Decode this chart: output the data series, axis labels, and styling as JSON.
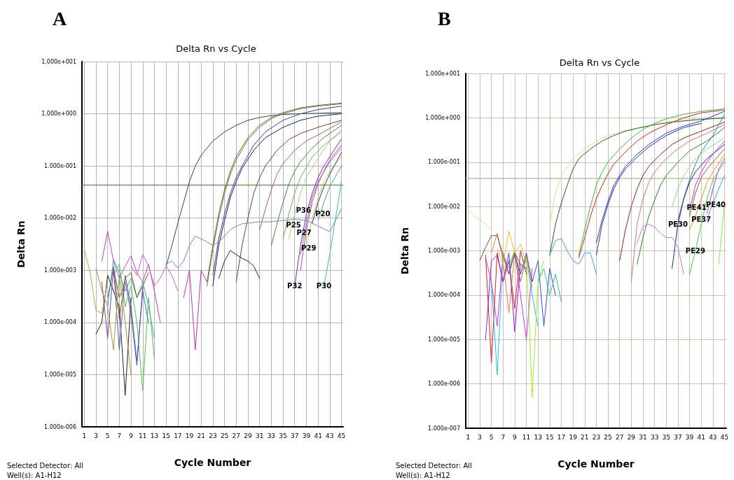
{
  "chart_data": [
    {
      "type": "line",
      "title": "Delta Rn vs Cycle",
      "xlabel": "Cycle Number",
      "ylabel": "Delta Rn",
      "log": "y",
      "grid": true,
      "marker": "none",
      "line_style": "solid",
      "xlim": [
        0.6,
        45.3
      ],
      "xticks": [
        1,
        3,
        5,
        7,
        9,
        11,
        13,
        15,
        17,
        19,
        21,
        23,
        25,
        27,
        29,
        31,
        33,
        35,
        37,
        39,
        41,
        43,
        45
      ],
      "ylim": [
        1e-06,
        10
      ],
      "yticks": [
        {
          "value": 1e-06,
          "label": "1.000e-006"
        },
        {
          "value": 1e-05,
          "label": "1.000e-005"
        },
        {
          "value": 0.0001,
          "label": "1.000e-004"
        },
        {
          "value": 0.001,
          "label": "1.000e-003"
        },
        {
          "value": 0.01,
          "label": "1.000e-002"
        },
        {
          "value": 0.1,
          "label": "1.000e-001"
        },
        {
          "value": 1,
          "label": "1.000e+000"
        },
        {
          "value": 10,
          "label": "1.000e+001"
        }
      ],
      "ref_lines": [
        {
          "axis": "y",
          "value": 0.043,
          "color": "#6f9a5f"
        }
      ],
      "annotations": [
        "A",
        "Selected Detector: All",
        "Well(s): A1-H12",
        {
          "text": "P36",
          "x": 38.5,
          "y": 0.014
        },
        {
          "text": "P20",
          "x": 41.8,
          "y": 0.012
        },
        {
          "text": "P25",
          "x": 36.8,
          "y": 0.0075
        },
        {
          "text": "P27",
          "x": 38.6,
          "y": 0.0052
        },
        {
          "text": "P29",
          "x": 39.4,
          "y": 0.0027
        },
        {
          "text": "P32",
          "x": 37,
          "y": 0.0005
        },
        {
          "text": "P30",
          "x": 42,
          "y": 0.0005
        }
      ],
      "series": [
        {
          "color": "#2f4a35",
          "x": [
            15,
            16,
            17,
            18,
            19,
            20,
            21,
            23,
            25,
            27,
            29,
            31,
            33,
            35,
            38,
            41,
            45
          ],
          "values": [
            0.0012,
            0.003,
            0.008,
            0.02,
            0.05,
            0.1,
            0.16,
            0.3,
            0.45,
            0.6,
            0.75,
            0.85,
            0.92,
            0.97,
            1,
            1.02,
            1.05
          ]
        },
        {
          "color": "#b04040",
          "x": [
            22,
            23,
            24,
            25,
            26,
            27,
            29,
            31,
            33,
            35,
            38,
            41,
            45
          ],
          "values": [
            0.0006,
            0.003,
            0.012,
            0.035,
            0.08,
            0.15,
            0.35,
            0.6,
            0.85,
            1.05,
            1.3,
            1.45,
            1.6
          ]
        },
        {
          "color": "#3a9a3a",
          "x": [
            22,
            23,
            24,
            25,
            26,
            27,
            29,
            31,
            33,
            35,
            38,
            41,
            45
          ],
          "values": [
            0.0005,
            0.0025,
            0.01,
            0.03,
            0.07,
            0.13,
            0.32,
            0.55,
            0.8,
            1,
            1.25,
            1.4,
            1.55
          ]
        },
        {
          "color": "#3a3aa0",
          "x": [
            23,
            24,
            25,
            26,
            27,
            28,
            30,
            32,
            35,
            38,
            41,
            45
          ],
          "values": [
            0.0008,
            0.004,
            0.012,
            0.03,
            0.06,
            0.1,
            0.25,
            0.45,
            0.75,
            1,
            1.2,
            1.4
          ]
        },
        {
          "color": "#202050",
          "x": [
            23,
            24,
            25,
            26,
            27,
            28,
            30,
            32,
            35,
            38,
            41,
            45
          ],
          "values": [
            0.0005,
            0.003,
            0.009,
            0.025,
            0.05,
            0.09,
            0.2,
            0.35,
            0.55,
            0.75,
            0.9,
            1
          ]
        },
        {
          "color": "#7a3a2a",
          "x": [
            27,
            28,
            29,
            30,
            31,
            32,
            34,
            36,
            38,
            41,
            45
          ],
          "values": [
            0.0006,
            0.003,
            0.01,
            0.03,
            0.06,
            0.1,
            0.2,
            0.32,
            0.42,
            0.55,
            0.75
          ]
        },
        {
          "color": "#a06070",
          "x": [
            31,
            32,
            33,
            34,
            35,
            37,
            39,
            42,
            45
          ],
          "values": [
            0.006,
            0.015,
            0.035,
            0.07,
            0.11,
            0.2,
            0.3,
            0.45,
            0.7
          ]
        },
        {
          "color": "#3a8a4a",
          "x": [
            33,
            34,
            35,
            36,
            37,
            38,
            40,
            42,
            45
          ],
          "values": [
            0.003,
            0.008,
            0.02,
            0.045,
            0.08,
            0.12,
            0.22,
            0.35,
            0.6
          ]
        },
        {
          "color": "#60b060",
          "x": [
            35,
            36,
            37,
            38,
            40,
            42,
            45
          ],
          "values": [
            0.004,
            0.012,
            0.03,
            0.06,
            0.15,
            0.25,
            0.45
          ]
        },
        {
          "color": "#c0c080",
          "x": [
            36,
            37,
            38,
            39,
            41,
            43,
            45
          ],
          "values": [
            0.004,
            0.012,
            0.03,
            0.06,
            0.14,
            0.3,
            0.5
          ]
        },
        {
          "color": "#7a2a9a",
          "x": [
            37,
            38,
            39,
            40,
            41,
            42,
            43,
            45
          ],
          "values": [
            0.0005,
            0.003,
            0.012,
            0.03,
            0.06,
            0.1,
            0.15,
            0.33
          ]
        },
        {
          "color": "#c040c0",
          "x": [
            38,
            39,
            40,
            41,
            42,
            43,
            45
          ],
          "values": [
            0.001,
            0.006,
            0.02,
            0.045,
            0.08,
            0.13,
            0.25
          ]
        },
        {
          "color": "#9a60c0",
          "x": [
            38,
            39,
            40,
            41,
            43,
            45
          ],
          "values": [
            0.002,
            0.008,
            0.025,
            0.05,
            0.12,
            0.22
          ]
        },
        {
          "color": "#d8d040",
          "x": [
            39,
            40,
            41,
            42,
            43,
            45
          ],
          "values": [
            0.003,
            0.01,
            0.025,
            0.05,
            0.08,
            0.15
          ]
        },
        {
          "color": "#303070",
          "x": [
            40,
            41,
            42,
            43,
            45
          ],
          "values": [
            0.008,
            0.02,
            0.04,
            0.07,
            0.18
          ]
        },
        {
          "color": "#50a080",
          "x": [
            41,
            42,
            43,
            45
          ],
          "values": [
            0.009,
            0.02,
            0.04,
            0.1
          ]
        },
        {
          "color": "#30c0c0",
          "x": [
            42,
            43,
            44,
            45
          ],
          "values": [
            0.0005,
            0.002,
            0.01,
            0.05
          ]
        },
        {
          "color": "#6a8ab0",
          "x": [
            15,
            16,
            17,
            18,
            19,
            20,
            21,
            22,
            23,
            24,
            25,
            26,
            27,
            28,
            29,
            31,
            33,
            35,
            37,
            39,
            41,
            43,
            45
          ],
          "values": [
            0.0013,
            0.0015,
            0.0011,
            0.0015,
            0.003,
            0.0045,
            0.004,
            0.0035,
            0.003,
            0.0035,
            0.0045,
            0.006,
            0.007,
            0.0078,
            0.008,
            0.0085,
            0.0085,
            0.009,
            0.0095,
            0.009,
            0.007,
            0.0055,
            0.015
          ]
        },
        {
          "color": "#c040c0",
          "x": [
            4,
            5,
            6,
            7,
            8,
            9,
            10,
            11,
            12,
            13,
            14
          ],
          "values": [
            0.0015,
            0.0056,
            0.0015,
            0.0007,
            0.0012,
            0.0019,
            0.0009,
            0.0006,
            0.0013,
            0.0004,
            0.0001
          ]
        },
        {
          "color": "#30b0a0",
          "x": [
            5,
            6,
            7,
            8,
            9,
            10,
            11,
            12,
            13
          ],
          "values": [
            0.0002,
            0.0016,
            0.0009,
            0.0004,
            0.0007,
            0.0003,
            0.0006,
            0.0002,
            5e-05
          ]
        },
        {
          "color": "#202020",
          "x": [
            3,
            4,
            5,
            6,
            7,
            8,
            9
          ],
          "values": [
            6e-05,
            0.0001,
            0.0008,
            0.0004,
            0.0002,
            4e-06,
            0.0003
          ]
        },
        {
          "color": "#d0a030",
          "x": [
            1,
            2,
            3,
            4,
            5
          ],
          "values": [
            0.0025,
            0.0009,
            0.00017,
            0.00015,
            0.0006
          ]
        },
        {
          "color": "#8040a0",
          "x": [
            4,
            5,
            6,
            7,
            8,
            9,
            10,
            11
          ],
          "values": [
            0.0006,
            5e-05,
            0.0011,
            0.0003,
            0.0006,
            0.00015,
            1.5e-05,
            0.0005
          ]
        },
        {
          "color": "#50c050",
          "x": [
            6,
            7,
            8,
            9,
            10,
            11,
            12,
            13
          ],
          "values": [
            0.0008,
            0.0013,
            0.0002,
            0.0005,
            0.0001,
            5e-06,
            0.0003,
            2e-05
          ]
        },
        {
          "color": "#4060c0",
          "x": [
            5,
            6,
            7,
            8,
            9,
            10,
            11,
            12
          ],
          "values": [
            0.0003,
            0.0011,
            3e-05,
            0.0008,
            0.0002,
            1.8e-05,
            0.0004,
            0.0001
          ]
        },
        {
          "color": "#8a4a2a",
          "x": [
            6,
            7,
            8,
            9,
            10,
            11,
            12
          ],
          "values": [
            0.0012,
            0.00012,
            0.0007,
            0.0009,
            0.0003,
            0.0005,
            0.0009
          ]
        },
        {
          "color": "#9a9a30",
          "x": [
            3,
            4,
            5,
            6,
            7,
            8,
            9
          ],
          "values": [
            0.0011,
            0.0004,
            0.0002,
            3e-05,
            0.0008,
            0.0001,
            1e-05
          ]
        },
        {
          "color": "#d060c0",
          "x": [
            9,
            10,
            11,
            12,
            13,
            14,
            15,
            16,
            17
          ],
          "values": [
            0.0012,
            0.0008,
            0.002,
            0.0012,
            0.0005,
            0.0007,
            0.0012,
            0.0008,
            0.0004
          ]
        },
        {
          "color": "#c030c0",
          "x": [
            18,
            19,
            20,
            21,
            22
          ],
          "values": [
            0.0003,
            0.001,
            3e-05,
            0.001,
            0.0006
          ]
        },
        {
          "color": "#302020",
          "x": [
            24,
            25,
            26,
            27,
            28,
            29,
            30,
            31
          ],
          "values": [
            0.0007,
            0.0015,
            0.0024,
            0.002,
            0.0017,
            0.0015,
            0.0012,
            0.0007
          ]
        }
      ]
    },
    {
      "type": "line",
      "title": "Delta Rn vs Cycle",
      "xlabel": "Cycle Number",
      "ylabel": "Delta Rn",
      "log": "y",
      "grid": true,
      "marker": "none",
      "line_style": "solid",
      "xlim": [
        0.6,
        45.3
      ],
      "xticks": [
        1,
        3,
        5,
        7,
        9,
        11,
        13,
        15,
        17,
        19,
        21,
        23,
        25,
        27,
        29,
        31,
        33,
        35,
        37,
        39,
        41,
        43,
        45
      ],
      "ylim": [
        1e-07,
        10
      ],
      "yticks": [
        {
          "value": 1e-07,
          "label": "1.000e-007"
        },
        {
          "value": 1e-06,
          "label": "1.000e-006"
        },
        {
          "value": 1e-05,
          "label": "1.000e-005"
        },
        {
          "value": 0.0001,
          "label": "1.000e-004"
        },
        {
          "value": 0.001,
          "label": "1.000e-003"
        },
        {
          "value": 0.01,
          "label": "1.000e-002"
        },
        {
          "value": 0.1,
          "label": "1.000e-001"
        },
        {
          "value": 1,
          "label": "1.000e+000"
        },
        {
          "value": 10,
          "label": "1.000e+001"
        }
      ],
      "ref_lines": [
        {
          "axis": "y",
          "value": 0.043,
          "color": "#c4bcae"
        }
      ],
      "annotations": [
        "B",
        "Selected Detector: All",
        "Well(s): A1-H12",
        {
          "text": "PE30",
          "x": 37,
          "y": 0.004
        },
        {
          "text": "PE41",
          "x": 40.2,
          "y": 0.0095
        },
        {
          "text": "PE40",
          "x": 43.5,
          "y": 0.011
        },
        {
          "text": "PE37",
          "x": 41,
          "y": 0.0052
        },
        {
          "text": "PE29",
          "x": 40,
          "y": 0.001
        }
      ],
      "series": [
        {
          "color": "#c0f080",
          "x": [
            15,
            16,
            17,
            19,
            21,
            23,
            25,
            27,
            29,
            31,
            33,
            35,
            38,
            41,
            45
          ],
          "values": [
            0.004,
            0.02,
            0.05,
            0.12,
            0.2,
            0.3,
            0.4,
            0.48,
            0.55,
            0.62,
            0.7,
            0.8,
            0.9,
            0.95,
            0.95
          ]
        },
        {
          "color": "#205a30",
          "x": [
            15,
            16,
            17,
            18,
            19,
            20,
            22,
            24,
            26,
            28,
            30,
            33,
            36,
            40,
            45
          ],
          "values": [
            0.0008,
            0.004,
            0.012,
            0.03,
            0.07,
            0.12,
            0.2,
            0.3,
            0.4,
            0.5,
            0.58,
            0.7,
            0.8,
            0.9,
            1
          ]
        },
        {
          "color": "#30c030",
          "x": [
            20,
            21,
            22,
            23,
            24,
            25,
            27,
            29,
            31,
            33,
            35,
            38,
            41,
            45
          ],
          "values": [
            0.0008,
            0.003,
            0.01,
            0.03,
            0.06,
            0.1,
            0.2,
            0.35,
            0.55,
            0.75,
            0.95,
            1.2,
            1.4,
            1.6
          ]
        },
        {
          "color": "#d02020",
          "x": [
            20,
            21,
            22,
            23,
            24,
            25,
            26,
            28,
            30,
            32,
            35,
            38,
            41,
            45
          ],
          "values": [
            0.0007,
            0.002,
            0.006,
            0.015,
            0.03,
            0.055,
            0.09,
            0.17,
            0.3,
            0.45,
            0.7,
            1,
            1.3,
            1.5
          ]
        },
        {
          "color": "#2030e0",
          "x": [
            23,
            24,
            25,
            26,
            27,
            28,
            30,
            32,
            35,
            38,
            41,
            45
          ],
          "values": [
            0.0015,
            0.005,
            0.013,
            0.03,
            0.05,
            0.08,
            0.15,
            0.25,
            0.45,
            0.65,
            0.85,
            1.4
          ]
        },
        {
          "color": "#303080",
          "x": [
            23,
            24,
            25,
            26,
            27,
            28,
            30,
            32,
            35,
            38,
            41
          ],
          "values": [
            0.0008,
            0.004,
            0.011,
            0.025,
            0.045,
            0.07,
            0.13,
            0.22,
            0.4,
            0.6,
            0.75
          ]
        },
        {
          "color": "#902020",
          "x": [
            27,
            28,
            29,
            30,
            31,
            32,
            34,
            36,
            38,
            41,
            45
          ],
          "values": [
            0.0006,
            0.003,
            0.01,
            0.025,
            0.05,
            0.08,
            0.15,
            0.25,
            0.35,
            0.5,
            0.8
          ]
        },
        {
          "color": "#e07070",
          "x": [
            29,
            30,
            31,
            32,
            33,
            35,
            37,
            39,
            42,
            45
          ],
          "values": [
            0.0002,
            0.004,
            0.015,
            0.035,
            0.06,
            0.12,
            0.2,
            0.3,
            0.45,
            0.7
          ]
        },
        {
          "color": "#208a20",
          "x": [
            30,
            31,
            32,
            33,
            34,
            35,
            37,
            39,
            42,
            45
          ],
          "values": [
            0.0005,
            0.002,
            0.006,
            0.014,
            0.03,
            0.05,
            0.1,
            0.18,
            0.3,
            0.6
          ]
        },
        {
          "color": "#20908a",
          "x": [
            37,
            38,
            39,
            40,
            41,
            43,
            45
          ],
          "values": [
            0.005,
            0.015,
            0.04,
            0.09,
            0.17,
            0.4,
            1.2
          ]
        },
        {
          "color": "#202090",
          "x": [
            36,
            37,
            38,
            39,
            40,
            42,
            45
          ],
          "values": [
            0.0004,
            0.004,
            0.015,
            0.035,
            0.06,
            0.12,
            0.25
          ]
        },
        {
          "color": "#80e080",
          "x": [
            36,
            37,
            38,
            40,
            42,
            45
          ],
          "values": [
            0.01,
            0.025,
            0.05,
            0.12,
            0.2,
            0.35
          ]
        },
        {
          "color": "#f020d0",
          "x": [
            39,
            40,
            41,
            42,
            43,
            45
          ],
          "values": [
            0.008,
            0.03,
            0.06,
            0.1,
            0.15,
            0.3
          ]
        },
        {
          "color": "#707030",
          "x": [
            39,
            40,
            41,
            42,
            43,
            45
          ],
          "values": [
            0.006,
            0.02,
            0.045,
            0.07,
            0.1,
            0.2
          ]
        },
        {
          "color": "#f09020",
          "x": [
            39,
            40,
            41,
            42,
            43,
            45
          ],
          "values": [
            0.003,
            0.006,
            0.015,
            0.035,
            0.06,
            0.15
          ]
        },
        {
          "color": "#d030f0",
          "x": [
            42,
            43,
            44,
            45
          ],
          "values": [
            0.007,
            0.025,
            0.07,
            0.12
          ]
        },
        {
          "color": "#30a0f0",
          "x": [
            42,
            43,
            44,
            45
          ],
          "values": [
            0.005,
            0.012,
            0.025,
            0.05
          ]
        },
        {
          "color": "#40d040",
          "x": [
            39,
            40,
            41,
            42,
            43,
            45
          ],
          "values": [
            0.0003,
            0.001,
            0.004,
            0.015,
            0.04,
            0.1
          ]
        },
        {
          "color": "#d070d0",
          "x": [
            30,
            31,
            32,
            33,
            34,
            35,
            36,
            37,
            38
          ],
          "values": [
            0.0015,
            0.0035,
            0.004,
            0.0035,
            0.0025,
            0.002,
            0.002,
            0.0012,
            0.0003
          ]
        },
        {
          "color": "#80f040",
          "x": [
            44,
            45
          ],
          "values": [
            0.0005,
            0.012
          ]
        },
        {
          "color": "#c0f080",
          "x": [
            1,
            2,
            3,
            4,
            5
          ],
          "values": [
            0.009,
            0.006,
            0.005,
            0.004,
            0.003
          ]
        },
        {
          "color": "#40a0f0",
          "x": [
            15,
            16,
            17,
            18,
            19,
            20,
            21,
            22,
            23
          ],
          "values": [
            0.0008,
            0.0017,
            0.0019,
            0.001,
            0.0006,
            0.0005,
            0.0009,
            0.0009,
            0.0003
          ]
        },
        {
          "color": "#e030e0",
          "x": [
            4,
            5,
            6,
            7,
            8,
            9,
            10,
            11,
            12
          ],
          "values": [
            0.0007,
            0.0002,
            2e-05,
            0.0008,
            0.0003,
            0.0009,
            0.0001,
            1e-05,
            0.0004
          ]
        },
        {
          "color": "#e02020",
          "x": [
            4,
            5,
            6,
            7,
            8,
            9,
            10,
            11
          ],
          "values": [
            0.0008,
            3e-06,
            0.0009,
            0.0002,
            0.0006,
            5e-05,
            0.001,
            0.0003
          ]
        },
        {
          "color": "#20c0f0",
          "x": [
            5,
            6,
            7,
            8,
            9,
            10,
            11,
            12,
            13
          ],
          "values": [
            0.0002,
            1.6e-06,
            0.0009,
            0.0004,
            0.001,
            0.0002,
            0.0007,
            0.0001,
            2e-05
          ]
        },
        {
          "color": "#a0f020",
          "x": [
            8,
            9,
            10,
            11,
            12,
            13,
            14
          ],
          "values": [
            0.0005,
            0.001,
            0.0003,
            0.0008,
            5e-07,
            0.0002,
            0.0006
          ]
        },
        {
          "color": "#f08030",
          "x": [
            5,
            6,
            7,
            8,
            9,
            10,
            11,
            12
          ],
          "values": [
            0.0009,
            0.0025,
            0.0006,
            4e-05,
            0.0009,
            0.0002,
            0.0008,
            0.00015
          ]
        },
        {
          "color": "#9020e0",
          "x": [
            4,
            5,
            6,
            7,
            8,
            9,
            10,
            11
          ],
          "values": [
            1e-05,
            0.0006,
            0.0008,
            0.0002,
            0.0009,
            1.5e-05,
            0.0005,
            0.0004
          ]
        },
        {
          "color": "#8a4040",
          "x": [
            3,
            4,
            5,
            6,
            7,
            8,
            9,
            10
          ],
          "values": [
            0.0006,
            0.0012,
            0.0022,
            0.0022,
            0.0008,
            0.0003,
            0.0009,
            0.0005
          ]
        },
        {
          "color": "#3050d0",
          "x": [
            9,
            10,
            11,
            12,
            13,
            14,
            15,
            16
          ],
          "values": [
            0.0008,
            0.0003,
            0.0009,
            0.0002,
            0.0006,
            2e-05,
            0.0004,
            0.0001
          ]
        },
        {
          "color": "#30c090",
          "x": [
            13,
            14,
            15,
            16,
            17
          ],
          "values": [
            0.0002,
            0.0004,
            0.0001,
            0.0003,
            7e-05
          ]
        },
        {
          "color": "#e0c020",
          "x": [
            6,
            7,
            8,
            9,
            10,
            11
          ],
          "values": [
            0.0011,
            0.0005,
            0.0028,
            0.0009,
            0.0014,
            0.0005
          ]
        }
      ]
    }
  ]
}
